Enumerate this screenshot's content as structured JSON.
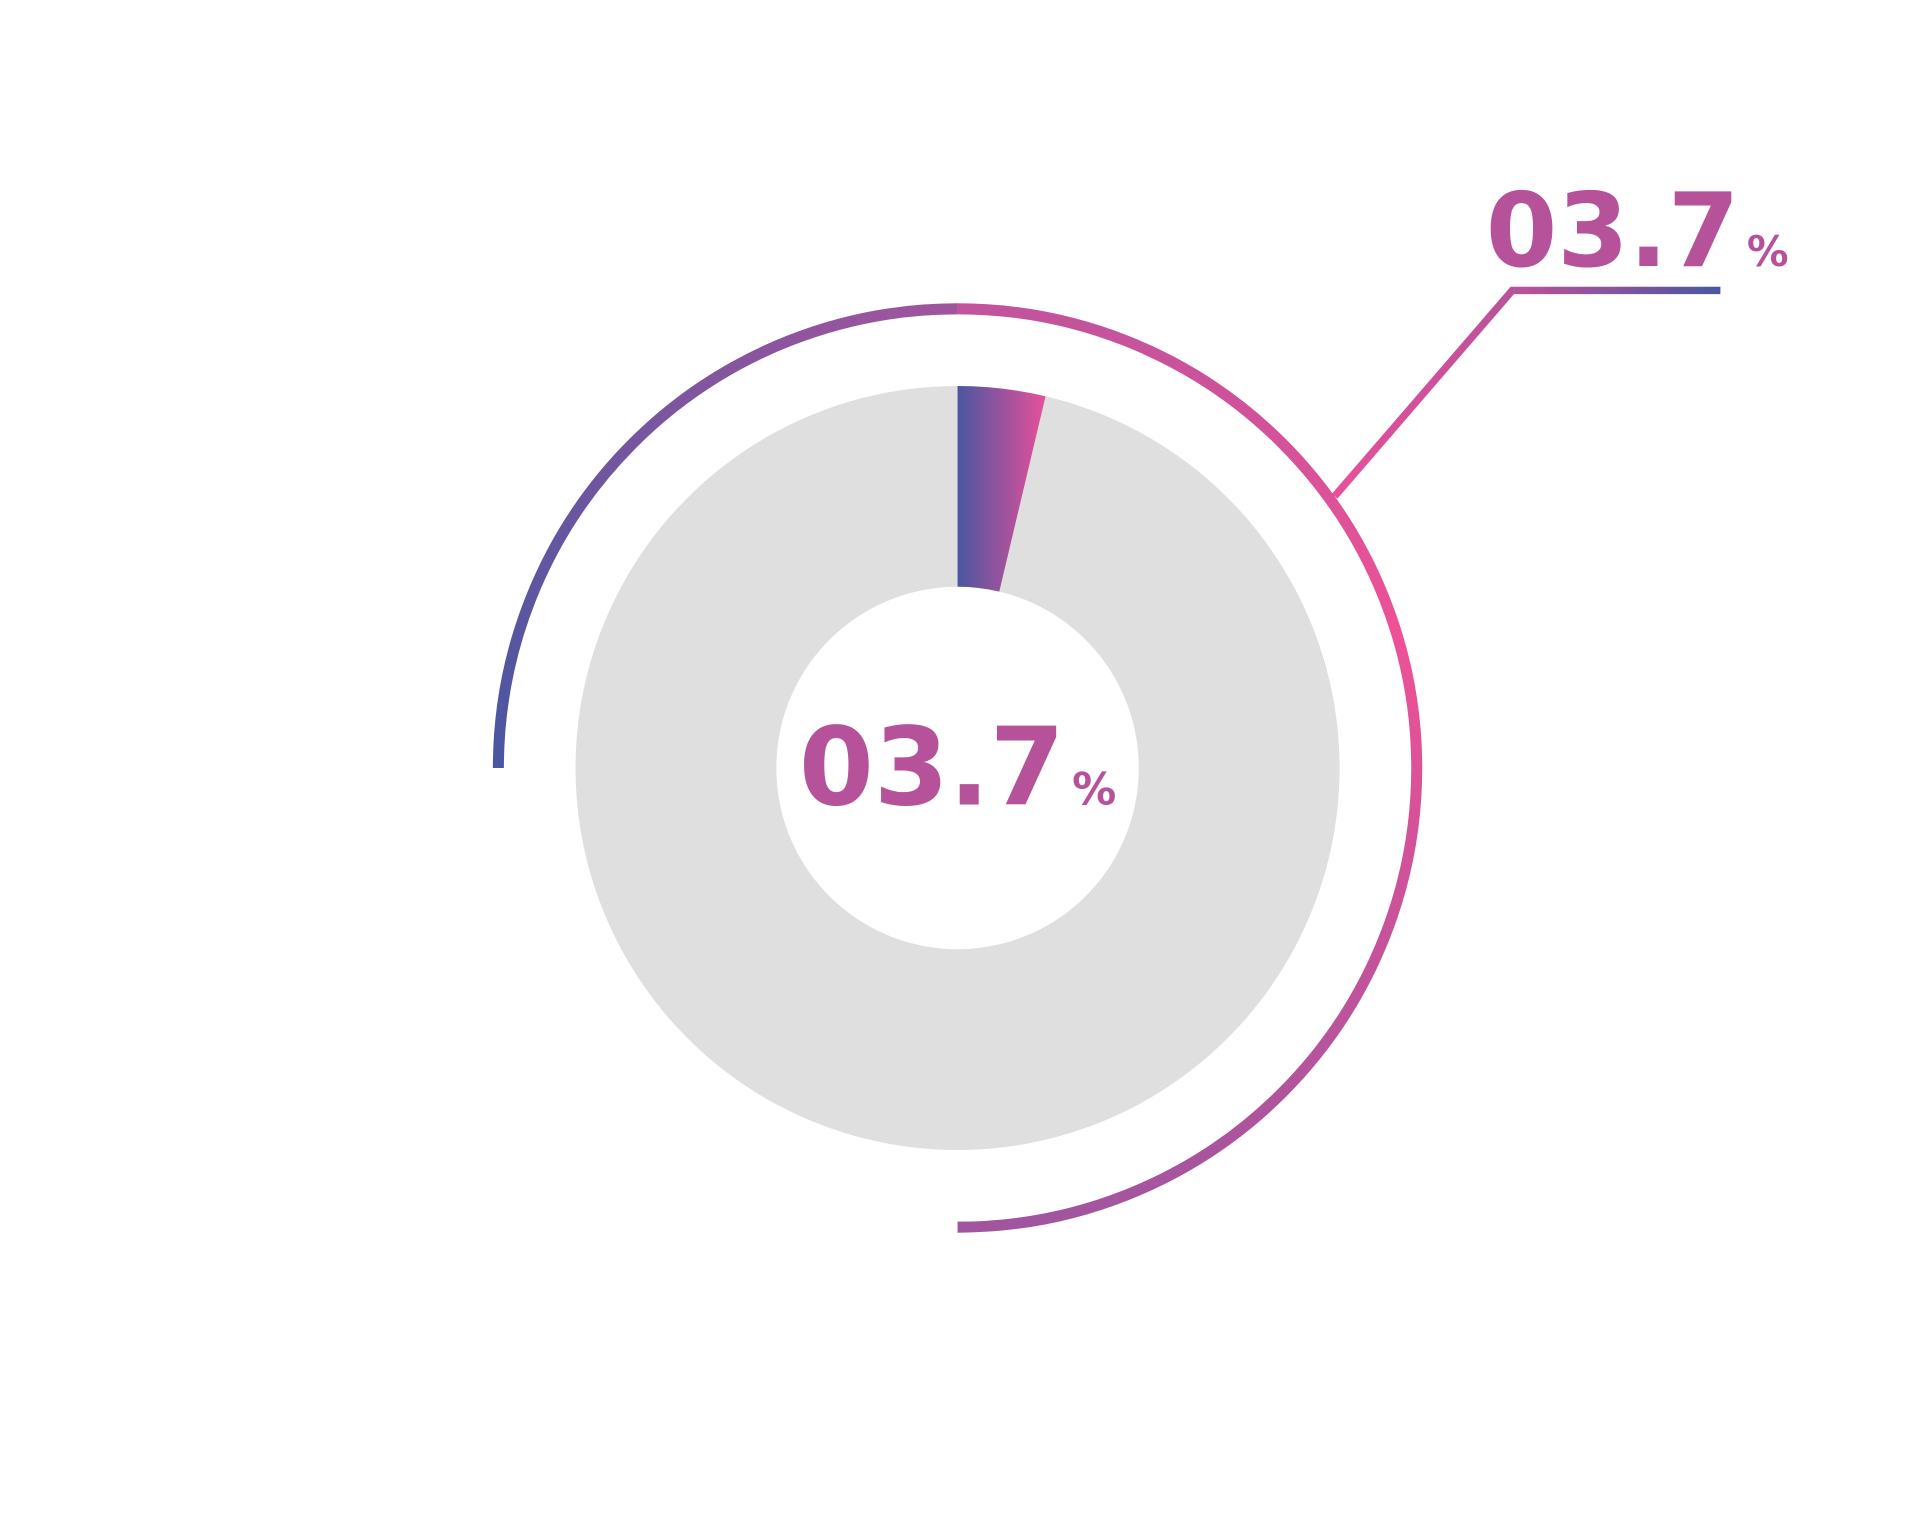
{
  "chart_data": {
    "type": "pie",
    "style": "donut",
    "values": [
      3.7,
      96.3
    ],
    "center_label": {
      "value": "03.7",
      "unit": "%"
    },
    "callout_label": {
      "value": "03.7",
      "unit": "%"
    },
    "colors": {
      "slice_gradient_start": "#4a56a0",
      "slice_gradient_end": "#e8509a",
      "remainder": "#dfdfdf",
      "label": "#b5529a",
      "arc_blue": "#4a56a0",
      "arc_purple": "#a0559e",
      "arc_pink": "#ee5196"
    }
  }
}
